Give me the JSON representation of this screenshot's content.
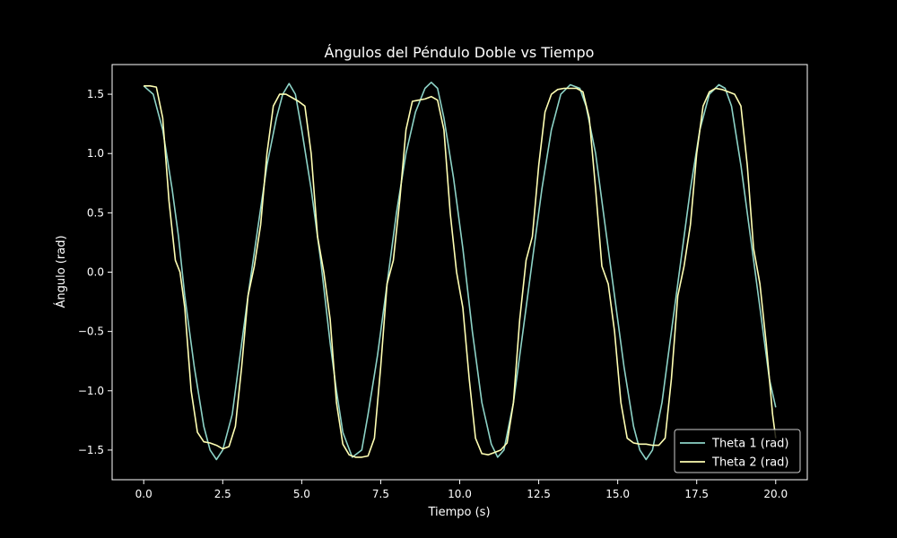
{
  "chart_data": {
    "type": "line",
    "title": "Ángulos del Péndulo Doble vs Tiempo",
    "xlabel": "Tiempo (s)",
    "ylabel": "Ángulo (rad)",
    "xlim": [
      -1.0,
      21.0
    ],
    "ylim": [
      -1.75,
      1.75
    ],
    "xticks": [
      0.0,
      2.5,
      5.0,
      7.5,
      10.0,
      12.5,
      15.0,
      17.5,
      20.0
    ],
    "xtick_labels": [
      "0.0",
      "2.5",
      "5.0",
      "7.5",
      "10.0",
      "12.5",
      "15.0",
      "17.5",
      "20.0"
    ],
    "yticks": [
      1.5,
      1.0,
      0.5,
      0.0,
      -0.5,
      -1.0,
      -1.5
    ],
    "ytick_labels": [
      "1.5",
      "1.0",
      "0.5",
      "0.0",
      "−0.5",
      "−1.0",
      "−1.5"
    ],
    "grid": false,
    "legend_position": "lower-right",
    "background": "#000000",
    "series": [
      {
        "name": "Theta 1 (rad)",
        "color": "#8dd3c7",
        "x": [
          0.0,
          0.3,
          0.6,
          0.9,
          1.1,
          1.3,
          1.6,
          1.9,
          2.1,
          2.3,
          2.5,
          2.8,
          3.0,
          3.3,
          3.6,
          3.9,
          4.2,
          4.4,
          4.6,
          4.8,
          5.0,
          5.3,
          5.6,
          5.9,
          6.1,
          6.3,
          6.6,
          6.9,
          7.1,
          7.4,
          7.7,
          8.0,
          8.3,
          8.6,
          8.9,
          9.1,
          9.3,
          9.5,
          9.8,
          10.1,
          10.4,
          10.7,
          11.0,
          11.2,
          11.4,
          11.7,
          12.0,
          12.3,
          12.6,
          12.9,
          13.2,
          13.5,
          13.8,
          14.0,
          14.3,
          14.6,
          14.9,
          15.2,
          15.5,
          15.7,
          15.9,
          16.1,
          16.4,
          16.7,
          17.0,
          17.3,
          17.6,
          17.9,
          18.2,
          18.4,
          18.6,
          18.9,
          19.2,
          19.5,
          19.8,
          20.0
        ],
        "y": [
          1.57,
          1.5,
          1.2,
          0.7,
          0.3,
          -0.2,
          -0.8,
          -1.3,
          -1.5,
          -1.58,
          -1.5,
          -1.2,
          -0.8,
          -0.2,
          0.35,
          0.9,
          1.3,
          1.5,
          1.59,
          1.5,
          1.2,
          0.7,
          0.1,
          -0.6,
          -1.0,
          -1.35,
          -1.56,
          -1.5,
          -1.2,
          -0.7,
          -0.1,
          0.5,
          1.0,
          1.35,
          1.55,
          1.6,
          1.55,
          1.3,
          0.8,
          0.2,
          -0.5,
          -1.1,
          -1.45,
          -1.56,
          -1.5,
          -1.1,
          -0.5,
          0.1,
          0.7,
          1.2,
          1.5,
          1.58,
          1.55,
          1.4,
          1.0,
          0.4,
          -0.2,
          -0.8,
          -1.3,
          -1.5,
          -1.58,
          -1.5,
          -1.1,
          -0.5,
          0.1,
          0.7,
          1.2,
          1.5,
          1.58,
          1.55,
          1.4,
          0.9,
          0.3,
          -0.3,
          -0.9,
          -1.14
        ]
      },
      {
        "name": "Theta 2 (rad)",
        "color": "#ffffb3",
        "x": [
          0.0,
          0.2,
          0.4,
          0.6,
          0.8,
          1.0,
          1.15,
          1.3,
          1.5,
          1.7,
          1.9,
          2.1,
          2.3,
          2.5,
          2.7,
          2.9,
          3.1,
          3.3,
          3.5,
          3.7,
          3.9,
          4.1,
          4.3,
          4.5,
          4.7,
          4.9,
          5.1,
          5.3,
          5.5,
          5.7,
          5.9,
          6.1,
          6.3,
          6.5,
          6.7,
          6.9,
          7.1,
          7.3,
          7.5,
          7.7,
          7.9,
          8.1,
          8.3,
          8.5,
          8.7,
          8.9,
          9.1,
          9.3,
          9.5,
          9.7,
          9.9,
          10.1,
          10.3,
          10.5,
          10.7,
          10.9,
          11.1,
          11.3,
          11.5,
          11.7,
          11.9,
          12.1,
          12.3,
          12.5,
          12.7,
          12.9,
          13.1,
          13.3,
          13.5,
          13.7,
          13.9,
          14.1,
          14.3,
          14.5,
          14.7,
          14.9,
          15.1,
          15.3,
          15.5,
          15.7,
          15.9,
          16.1,
          16.3,
          16.5,
          16.7,
          16.9,
          17.1,
          17.3,
          17.5,
          17.7,
          17.9,
          18.1,
          18.3,
          18.5,
          18.7,
          18.9,
          19.1,
          19.3,
          19.5,
          19.7,
          19.9,
          20.0
        ],
        "y": [
          1.57,
          1.57,
          1.56,
          1.3,
          0.6,
          0.1,
          0.0,
          -0.3,
          -1.0,
          -1.35,
          -1.43,
          -1.44,
          -1.46,
          -1.49,
          -1.47,
          -1.3,
          -0.8,
          -0.2,
          0.05,
          0.4,
          1.0,
          1.4,
          1.5,
          1.5,
          1.47,
          1.44,
          1.4,
          1.0,
          0.3,
          0.0,
          -0.4,
          -1.1,
          -1.45,
          -1.54,
          -1.56,
          -1.56,
          -1.55,
          -1.4,
          -0.8,
          -0.1,
          0.1,
          0.6,
          1.2,
          1.44,
          1.45,
          1.46,
          1.48,
          1.45,
          1.2,
          0.5,
          0.0,
          -0.3,
          -0.9,
          -1.4,
          -1.53,
          -1.54,
          -1.52,
          -1.5,
          -1.44,
          -1.1,
          -0.4,
          0.1,
          0.3,
          0.9,
          1.35,
          1.5,
          1.54,
          1.55,
          1.55,
          1.55,
          1.52,
          1.3,
          0.7,
          0.05,
          -0.1,
          -0.5,
          -1.1,
          -1.4,
          -1.44,
          -1.45,
          -1.45,
          -1.46,
          -1.46,
          -1.4,
          -0.9,
          -0.2,
          0.05,
          0.4,
          1.0,
          1.4,
          1.52,
          1.55,
          1.54,
          1.52,
          1.5,
          1.4,
          0.9,
          0.2,
          -0.1,
          -0.6,
          -1.2,
          -1.4
        ]
      }
    ]
  }
}
